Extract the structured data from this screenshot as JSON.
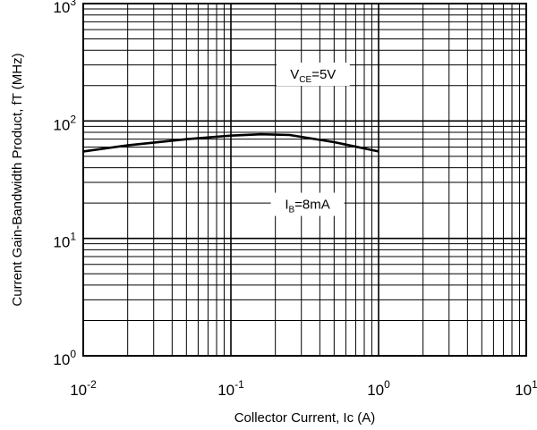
{
  "chart_data": {
    "type": "line",
    "xscale": "log",
    "yscale": "log",
    "xlim": [
      0.01,
      10
    ],
    "ylim": [
      1,
      1000
    ],
    "grid": true,
    "xlabel": "Collector Current, Ic (A)",
    "ylabel": "Current Gain-Bandwidth Product, fT (MHz)",
    "xticks": [
      {
        "base": "10",
        "exp": "-2",
        "value": 0.01
      },
      {
        "base": "10",
        "exp": "-1",
        "value": 0.1
      },
      {
        "base": "10",
        "exp": "0",
        "value": 1
      },
      {
        "base": "10",
        "exp": "1",
        "value": 10
      }
    ],
    "yticks": [
      {
        "base": "10",
        "exp": "0",
        "value": 1
      },
      {
        "base": "10",
        "exp": "1",
        "value": 10
      },
      {
        "base": "10",
        "exp": "2",
        "value": 100
      },
      {
        "base": "10",
        "exp": "3",
        "value": 1000
      }
    ],
    "series": [
      {
        "x": [
          0.01,
          0.02,
          0.05,
          0.1,
          0.16,
          0.25,
          0.5,
          1.0
        ],
        "y": [
          55,
          62,
          70,
          75,
          77,
          76,
          66,
          55
        ]
      }
    ],
    "annotations": [
      {
        "label": "V",
        "sub": "CE",
        "rest": "=5V",
        "x": 0.36,
        "y": 250
      },
      {
        "label": "I",
        "sub": "B",
        "rest": "=8mA",
        "x": 0.33,
        "y": 19.5
      }
    ]
  }
}
